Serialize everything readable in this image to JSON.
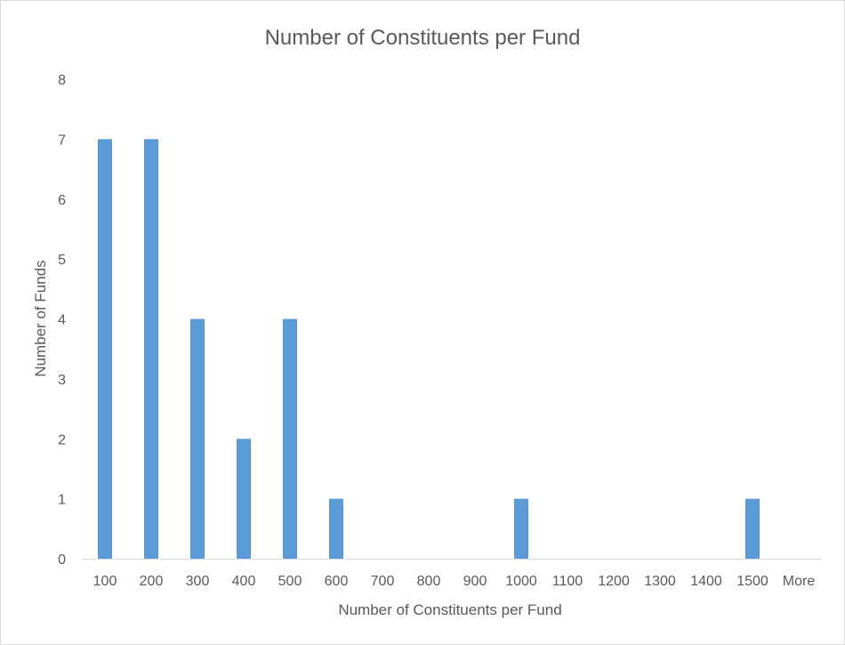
{
  "chart_data": {
    "type": "bar",
    "title": "Number of Constituents per Fund",
    "xlabel": "Number of Constituents per Fund",
    "ylabel": "Number of Funds",
    "categories": [
      "100",
      "200",
      "300",
      "400",
      "500",
      "600",
      "700",
      "800",
      "900",
      "1000",
      "1100",
      "1200",
      "1300",
      "1400",
      "1500",
      "More"
    ],
    "values": [
      7,
      7,
      4,
      2,
      4,
      1,
      0,
      0,
      0,
      1,
      0,
      0,
      0,
      0,
      1,
      0
    ],
    "ylim": [
      0,
      8
    ],
    "yticks": [
      "0",
      "1",
      "2",
      "3",
      "4",
      "5",
      "6",
      "7",
      "8"
    ],
    "grid": false,
    "legend": "none",
    "colors": {
      "bar": "#5b9bd5",
      "text": "#595959",
      "axis": "#d9d9d9"
    }
  }
}
